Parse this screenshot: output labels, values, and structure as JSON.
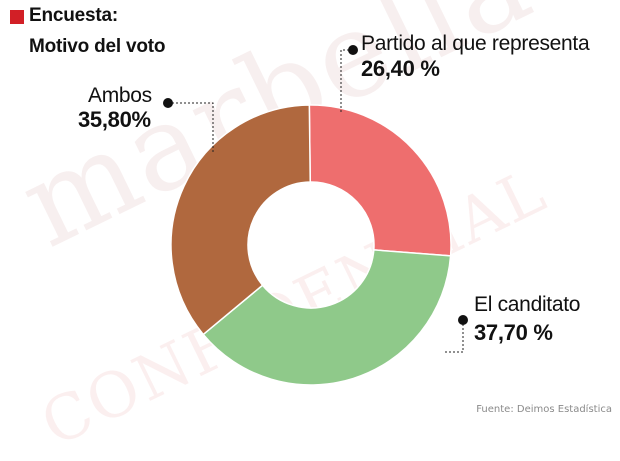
{
  "header": {
    "title": "Encuesta:",
    "subtitle": "Motivo del voto",
    "marker_color": "#d21f26"
  },
  "watermark": {
    "top": "marbella",
    "bottom": "CONFIDENCIAL"
  },
  "source": "Fuente: Deimos Estadística",
  "chart_data": {
    "type": "pie",
    "donut": true,
    "start": "top",
    "direction": "clockwise",
    "slices": [
      {
        "label": "Partido al que representa",
        "value_label": "26,40 %",
        "value": 26.4,
        "color": "#ee6e6e"
      },
      {
        "label": "El canditato",
        "value_label": "37,70 %",
        "value": 37.7,
        "color": "#8fc98a"
      },
      {
        "label": "Ambos",
        "value_label": "35,80%",
        "value": 35.8,
        "color": "#b0683e"
      }
    ]
  }
}
